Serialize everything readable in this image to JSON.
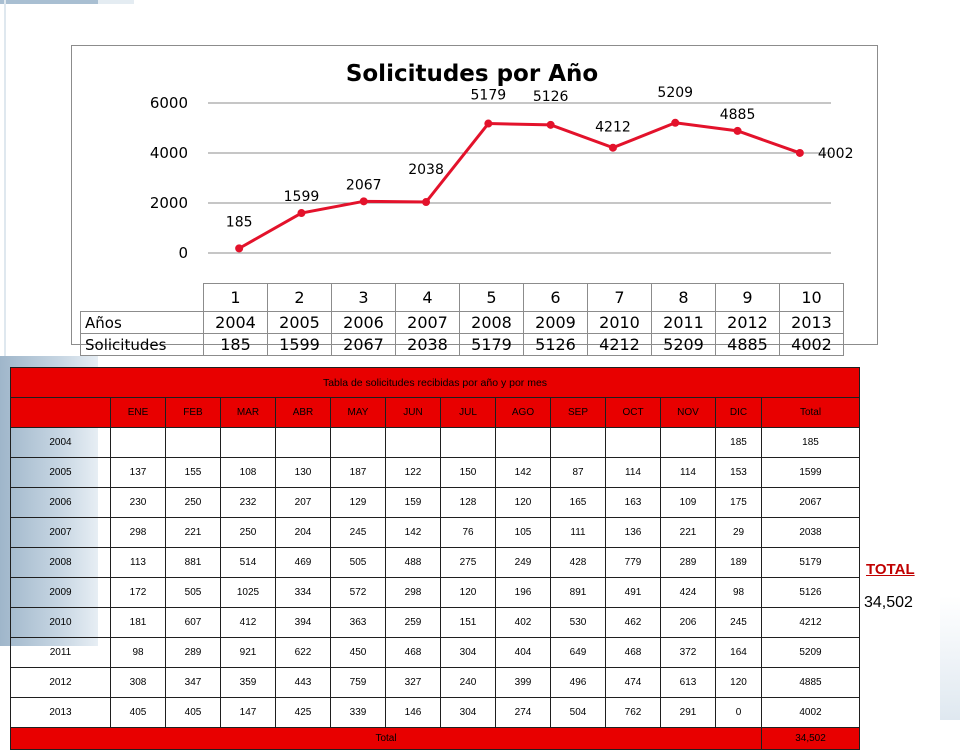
{
  "chart_data": {
    "type": "line",
    "title": "Solicitudes por Año",
    "categories": [
      "1",
      "2",
      "3",
      "4",
      "5",
      "6",
      "7",
      "8",
      "9",
      "10"
    ],
    "series": [
      {
        "name": "Solicitudes",
        "values": [
          185,
          1599,
          2067,
          2038,
          5179,
          5126,
          4212,
          5209,
          4885,
          4002
        ]
      }
    ],
    "yticks": [
      "6000",
      "4000",
      "2000",
      "0"
    ],
    "ylim": [
      0,
      6000
    ],
    "grid": true,
    "line_color": "#e3122b",
    "table": {
      "row_labels": [
        "Años",
        "Solicitudes"
      ],
      "years": [
        "2004",
        "2005",
        "2006",
        "2007",
        "2008",
        "2009",
        "2010",
        "2011",
        "2012",
        "2013"
      ],
      "values": [
        "185",
        "1599",
        "2067",
        "2038",
        "5179",
        "5126",
        "4212",
        "5209",
        "4885",
        "4002"
      ]
    }
  },
  "monthly_table": {
    "caption": "Tabla de solicitudes recibidas por año y por mes",
    "headers": [
      "",
      "ENE",
      "FEB",
      "MAR",
      "ABR",
      "MAY",
      "JUN",
      "JUL",
      "AGO",
      "SEP",
      "OCT",
      "NOV",
      "DIC",
      "Total"
    ],
    "rows": [
      [
        "2004",
        "",
        "",
        "",
        "",
        "",
        "",
        "",
        "",
        "",
        "",
        "",
        "185",
        "185"
      ],
      [
        "2005",
        "137",
        "155",
        "108",
        "130",
        "187",
        "122",
        "150",
        "142",
        "87",
        "114",
        "114",
        "153",
        "1599"
      ],
      [
        "2006",
        "230",
        "250",
        "232",
        "207",
        "129",
        "159",
        "128",
        "120",
        "165",
        "163",
        "109",
        "175",
        "2067"
      ],
      [
        "2007",
        "298",
        "221",
        "250",
        "204",
        "245",
        "142",
        "76",
        "105",
        "111",
        "136",
        "221",
        "29",
        "2038"
      ],
      [
        "2008",
        "113",
        "881",
        "514",
        "469",
        "505",
        "488",
        "275",
        "249",
        "428",
        "779",
        "289",
        "189",
        "5179"
      ],
      [
        "2009",
        "172",
        "505",
        "1025",
        "334",
        "572",
        "298",
        "120",
        "196",
        "891",
        "491",
        "424",
        "98",
        "5126"
      ],
      [
        "2010",
        "181",
        "607",
        "412",
        "394",
        "363",
        "259",
        "151",
        "402",
        "530",
        "462",
        "206",
        "245",
        "4212"
      ],
      [
        "2011",
        "98",
        "289",
        "921",
        "622",
        "450",
        "468",
        "304",
        "404",
        "649",
        "468",
        "372",
        "164",
        "5209"
      ],
      [
        "2012",
        "308",
        "347",
        "359",
        "443",
        "759",
        "327",
        "240",
        "399",
        "496",
        "474",
        "613",
        "120",
        "4885"
      ],
      [
        "2013",
        "405",
        "405",
        "147",
        "425",
        "339",
        "146",
        "304",
        "274",
        "504",
        "762",
        "291",
        "0",
        "4002"
      ]
    ],
    "total_label": "Total",
    "total_value": "34,502",
    "header_color": "#e80000"
  },
  "total_box": {
    "label": "TOTAL",
    "value": "34,502",
    "label_color": "#c00000"
  }
}
